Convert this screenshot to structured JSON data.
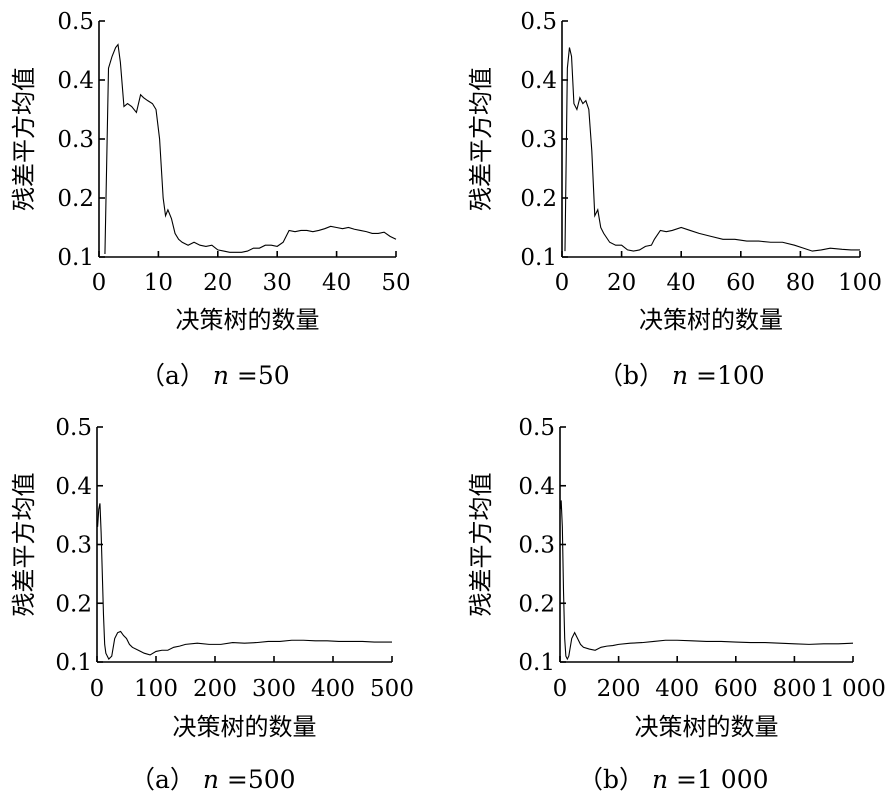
{
  "chart_data": [
    {
      "type": "line",
      "caption": "（a） n =50",
      "caption_parts": {
        "prefix": "（a）",
        "var": "n",
        "eq": " =50"
      },
      "xlabel": "决策树的数量",
      "ylabel": "残差平方均值",
      "xlim": [
        0,
        50
      ],
      "ylim": [
        0.1,
        0.5
      ],
      "x_ticks": [
        0,
        10,
        20,
        30,
        40,
        50
      ],
      "x_tick_labels": [
        "0",
        "10",
        "20",
        "30",
        "40",
        "50"
      ],
      "y_ticks": [
        0.1,
        0.2,
        0.3,
        0.4,
        0.5
      ],
      "y_tick_labels": [
        "0.1",
        "0.2",
        "0.3",
        "0.4",
        "0.5"
      ],
      "grid": false,
      "series": [
        {
          "x": [
            1,
            1.6,
            2.2,
            2.8,
            3.2,
            3.6,
            4.2,
            4.8,
            5.5,
            6.3,
            7.0,
            7.5,
            8.2,
            9.0,
            9.6,
            10.2,
            10.8,
            11.2,
            11.6,
            12.2,
            12.8,
            13.4,
            14.0,
            15.0,
            16.0,
            17.0,
            18.0,
            19.0,
            20.0,
            21.0,
            22.0,
            23.0,
            24.0,
            25.0,
            26.0,
            27.0,
            28.0,
            29.0,
            30.0,
            31.0,
            32.0,
            33.0,
            34.0,
            35.0,
            36.0,
            37.0,
            38.0,
            39.0,
            40.0,
            41.0,
            42.0,
            43.0,
            44.0,
            45.0,
            46.0,
            47.0,
            48.0,
            49.0,
            50.0
          ],
          "y": [
            0.105,
            0.42,
            0.44,
            0.455,
            0.46,
            0.43,
            0.355,
            0.36,
            0.355,
            0.345,
            0.375,
            0.37,
            0.365,
            0.36,
            0.35,
            0.3,
            0.2,
            0.17,
            0.18,
            0.165,
            0.14,
            0.13,
            0.125,
            0.12,
            0.125,
            0.12,
            0.118,
            0.12,
            0.112,
            0.11,
            0.108,
            0.108,
            0.108,
            0.11,
            0.115,
            0.115,
            0.12,
            0.12,
            0.118,
            0.125,
            0.145,
            0.143,
            0.145,
            0.145,
            0.143,
            0.145,
            0.148,
            0.152,
            0.15,
            0.148,
            0.15,
            0.147,
            0.145,
            0.143,
            0.14,
            0.14,
            0.142,
            0.135,
            0.13
          ]
        }
      ]
    },
    {
      "type": "line",
      "caption": "（b） n =100",
      "caption_parts": {
        "prefix": "（b）",
        "var": "n",
        "eq": " =100"
      },
      "xlabel": "决策树的数量",
      "ylabel": "残差平方均值",
      "xlim": [
        0,
        100
      ],
      "ylim": [
        0.1,
        0.5
      ],
      "x_ticks": [
        0,
        20,
        40,
        60,
        80,
        100
      ],
      "x_tick_labels": [
        "0",
        "20",
        "40",
        "60",
        "80",
        "100"
      ],
      "y_ticks": [
        0.1,
        0.2,
        0.3,
        0.4,
        0.5
      ],
      "y_tick_labels": [
        "0.1",
        "0.2",
        "0.3",
        "0.4",
        "0.5"
      ],
      "grid": false,
      "series": [
        {
          "x": [
            1,
            1.8,
            2.5,
            3.2,
            4.0,
            5.0,
            6.0,
            7.0,
            8.0,
            9.0,
            10.0,
            11.0,
            12.0,
            13.0,
            14.0,
            16.0,
            18.0,
            20.0,
            22.0,
            24.0,
            26.0,
            28.0,
            30.0,
            31.0,
            33.0,
            35.0,
            37.0,
            40.0,
            43.0,
            46.0,
            50.0,
            54.0,
            58.0,
            62.0,
            66.0,
            70.0,
            74.0,
            78.0,
            81.0,
            84.0,
            87.0,
            90.0,
            94.0,
            97.0,
            100.0
          ],
          "y": [
            0.11,
            0.42,
            0.455,
            0.44,
            0.36,
            0.35,
            0.37,
            0.36,
            0.365,
            0.35,
            0.28,
            0.17,
            0.18,
            0.15,
            0.14,
            0.125,
            0.12,
            0.12,
            0.112,
            0.11,
            0.112,
            0.118,
            0.12,
            0.13,
            0.145,
            0.143,
            0.145,
            0.15,
            0.145,
            0.14,
            0.135,
            0.13,
            0.13,
            0.127,
            0.127,
            0.125,
            0.125,
            0.12,
            0.115,
            0.11,
            0.112,
            0.115,
            0.113,
            0.112,
            0.112
          ]
        }
      ]
    },
    {
      "type": "line",
      "caption": "（a） n =500",
      "caption_parts": {
        "prefix": "（a）",
        "var": "n",
        "eq": " =500"
      },
      "xlabel": "决策树的数量",
      "ylabel": "残差平方均值",
      "xlim": [
        0,
        500
      ],
      "ylim": [
        0.1,
        0.5
      ],
      "x_ticks": [
        0,
        100,
        200,
        300,
        400,
        500
      ],
      "x_tick_labels": [
        "0",
        "100",
        "200",
        "300",
        "400",
        "500"
      ],
      "y_ticks": [
        0.1,
        0.2,
        0.3,
        0.4,
        0.5
      ],
      "y_tick_labels": [
        "0.1",
        "0.2",
        "0.3",
        "0.4",
        "0.5"
      ],
      "grid": false,
      "series": [
        {
          "x": [
            1,
            3,
            5,
            7,
            9,
            11,
            13,
            15,
            20,
            25,
            30,
            35,
            40,
            45,
            50,
            55,
            60,
            70,
            80,
            90,
            100,
            110,
            120,
            130,
            140,
            150,
            170,
            190,
            210,
            230,
            250,
            270,
            290,
            310,
            330,
            350,
            370,
            390,
            410,
            430,
            450,
            470,
            490,
            500
          ],
          "y": [
            0.33,
            0.36,
            0.37,
            0.32,
            0.25,
            0.18,
            0.13,
            0.115,
            0.105,
            0.11,
            0.14,
            0.15,
            0.152,
            0.145,
            0.14,
            0.13,
            0.125,
            0.12,
            0.115,
            0.112,
            0.118,
            0.12,
            0.12,
            0.125,
            0.127,
            0.13,
            0.132,
            0.13,
            0.13,
            0.133,
            0.132,
            0.133,
            0.135,
            0.135,
            0.137,
            0.137,
            0.136,
            0.136,
            0.135,
            0.135,
            0.135,
            0.134,
            0.134,
            0.134
          ]
        }
      ]
    },
    {
      "type": "line",
      "caption": "（b） n =1 000",
      "caption_parts": {
        "prefix": "（b）",
        "var": "n",
        "eq": " =1 000"
      },
      "xlabel": "决策树的数量",
      "ylabel": "残差平方均值",
      "xlim": [
        0,
        1000
      ],
      "ylim": [
        0.1,
        0.5
      ],
      "x_ticks": [
        0,
        200,
        400,
        600,
        800,
        1000
      ],
      "x_tick_labels": [
        "0",
        "200",
        "400",
        "600",
        "800",
        "1 000"
      ],
      "y_ticks": [
        0.1,
        0.2,
        0.3,
        0.4,
        0.5
      ],
      "y_tick_labels": [
        "0.1",
        "0.2",
        "0.3",
        "0.4",
        "0.5"
      ],
      "grid": false,
      "series": [
        {
          "x": [
            1,
            4,
            8,
            12,
            16,
            20,
            25,
            30,
            40,
            50,
            60,
            70,
            80,
            100,
            120,
            140,
            160,
            180,
            200,
            240,
            280,
            320,
            360,
            400,
            450,
            500,
            550,
            600,
            650,
            700,
            750,
            800,
            850,
            900,
            950,
            1000
          ],
          "y": [
            0.36,
            0.375,
            0.33,
            0.22,
            0.14,
            0.11,
            0.105,
            0.11,
            0.14,
            0.15,
            0.14,
            0.13,
            0.125,
            0.122,
            0.12,
            0.125,
            0.127,
            0.128,
            0.13,
            0.132,
            0.133,
            0.135,
            0.137,
            0.137,
            0.136,
            0.135,
            0.135,
            0.134,
            0.133,
            0.133,
            0.132,
            0.131,
            0.13,
            0.131,
            0.131,
            0.132
          ]
        }
      ]
    }
  ]
}
